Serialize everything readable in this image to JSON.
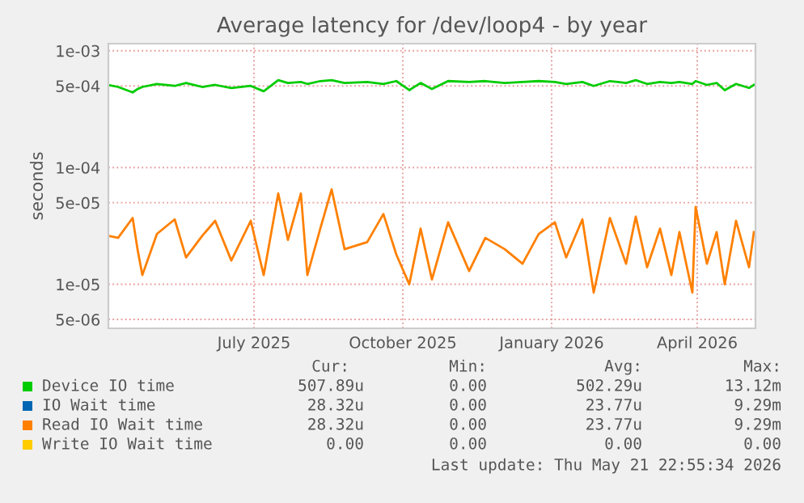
{
  "chart_data": {
    "type": "line",
    "title": "Average latency for /dev/loop4 - by year",
    "ylabel": "seconds",
    "log": true,
    "grid": true,
    "legend": "bottom",
    "marker": "none",
    "line_style": "solid",
    "xlim": [
      "2025-04-17",
      "2026-05-22"
    ],
    "xticks": [
      {
        "value": "2025-07-16",
        "label": "July 2025"
      },
      {
        "value": "2025-10-16",
        "label": "October 2025"
      },
      {
        "value": "2026-01-16",
        "label": "January 2026"
      },
      {
        "value": "2026-04-16",
        "label": "April 2026"
      }
    ],
    "ylim": [
      4.2e-06,
      0.00115
    ],
    "yticks": [
      {
        "value": 0.001,
        "label": "1e-03"
      },
      {
        "value": 0.0005,
        "label": "5e-04"
      },
      {
        "value": 0.0001,
        "label": "1e-04"
      },
      {
        "value": 5e-05,
        "label": "5e-05"
      },
      {
        "value": 1e-05,
        "label": "1e-05"
      },
      {
        "value": 5e-06,
        "label": "5e-06"
      }
    ],
    "x": [
      "2025-04-17",
      "2025-04-23",
      "2025-05-02",
      "2025-05-05",
      "2025-05-08",
      "2025-05-17",
      "2025-05-28",
      "2025-06-04",
      "2025-06-14",
      "2025-06-22",
      "2025-07-02",
      "2025-07-14",
      "2025-07-22",
      "2025-07-31",
      "2025-08-06",
      "2025-08-14",
      "2025-08-18",
      "2025-08-26",
      "2025-09-02",
      "2025-09-10",
      "2025-09-24",
      "2025-10-04",
      "2025-10-12",
      "2025-10-20",
      "2025-10-27",
      "2025-11-03",
      "2025-11-13",
      "2025-11-26",
      "2025-12-06",
      "2025-12-18",
      "2025-12-29",
      "2026-01-08",
      "2026-01-18",
      "2026-01-25",
      "2026-02-04",
      "2026-02-11",
      "2026-02-21",
      "2026-03-03",
      "2026-03-09",
      "2026-03-16",
      "2026-03-24",
      "2026-03-31",
      "2026-04-05",
      "2026-04-13",
      "2026-04-15",
      "2026-04-22",
      "2026-04-28",
      "2026-05-03",
      "2026-05-10",
      "2026-05-18",
      "2026-05-21"
    ],
    "series": [
      {
        "name": "Device IO time",
        "color": "#00cc00",
        "values": [
          0.00051,
          0.00049,
          0.00044,
          0.00047,
          0.00049,
          0.00052,
          0.0005,
          0.00053,
          0.00049,
          0.00051,
          0.00048,
          0.0005,
          0.00045,
          0.00056,
          0.00053,
          0.00054,
          0.00052,
          0.00055,
          0.00056,
          0.00053,
          0.00054,
          0.00052,
          0.00055,
          0.00046,
          0.00053,
          0.00047,
          0.00055,
          0.00054,
          0.00055,
          0.00053,
          0.00054,
          0.00055,
          0.00054,
          0.00052,
          0.00054,
          0.0005,
          0.00055,
          0.00053,
          0.00056,
          0.00052,
          0.00054,
          0.00053,
          0.00054,
          0.00052,
          0.00055,
          0.00051,
          0.00053,
          0.00046,
          0.00052,
          0.00048,
          0.00051
        ]
      },
      {
        "name": "IO Wait time",
        "color": "#0066b3",
        "values": [
          null,
          null,
          null,
          null,
          null,
          null,
          null,
          null,
          null,
          null,
          null,
          null,
          null,
          null,
          null,
          null,
          null,
          null,
          null,
          null,
          null,
          null,
          null,
          null,
          null,
          null,
          null,
          null,
          null,
          null,
          null,
          null,
          null,
          null,
          null,
          null,
          null,
          null,
          null,
          null,
          null,
          null,
          null,
          null,
          null,
          null,
          null,
          null,
          null,
          null,
          null
        ]
      },
      {
        "name": "Read IO Wait time",
        "color": "#ff8000",
        "values": [
          2.6e-05,
          2.5e-05,
          3.7e-05,
          2e-05,
          1.2e-05,
          2.7e-05,
          3.6e-05,
          1.7e-05,
          2.6e-05,
          3.5e-05,
          1.6e-05,
          3.5e-05,
          1.2e-05,
          6e-05,
          2.4e-05,
          6e-05,
          1.2e-05,
          3e-05,
          6.5e-05,
          2e-05,
          2.3e-05,
          4e-05,
          1.8e-05,
          1e-05,
          3e-05,
          1.1e-05,
          3.4e-05,
          1.3e-05,
          2.5e-05,
          2e-05,
          1.5e-05,
          2.7e-05,
          3.4e-05,
          1.7e-05,
          3.6e-05,
          8.5e-06,
          3.7e-05,
          1.5e-05,
          3.8e-05,
          1.4e-05,
          3e-05,
          1.2e-05,
          2.8e-05,
          8.5e-06,
          4.6e-05,
          1.5e-05,
          2.8e-05,
          1e-05,
          3.5e-05,
          1.4e-05,
          2.8e-05
        ]
      },
      {
        "name": "Write IO Wait time",
        "color": "#ffcc00",
        "values": [
          null,
          null,
          null,
          null,
          null,
          null,
          null,
          null,
          null,
          null,
          null,
          null,
          null,
          null,
          null,
          null,
          null,
          null,
          null,
          null,
          null,
          null,
          null,
          null,
          null,
          null,
          null,
          null,
          null,
          null,
          null,
          null,
          null,
          null,
          null,
          null,
          null,
          null,
          null,
          null,
          null,
          null,
          null,
          null,
          null,
          null,
          null,
          null,
          null,
          null,
          null
        ]
      }
    ],
    "annotations": [
      "Cur:",
      "Min:",
      "Avg:",
      "Max:",
      "507.89u",
      "0.00",
      "502.29u",
      "13.12m",
      "28.32u",
      "0.00",
      "23.77u",
      "9.29m",
      "28.32u",
      "0.00",
      "23.77u",
      "9.29m",
      "0.00",
      "0.00",
      "0.00",
      "0.00",
      "Last update: Thu May 21 22:55:34 2026"
    ]
  }
}
